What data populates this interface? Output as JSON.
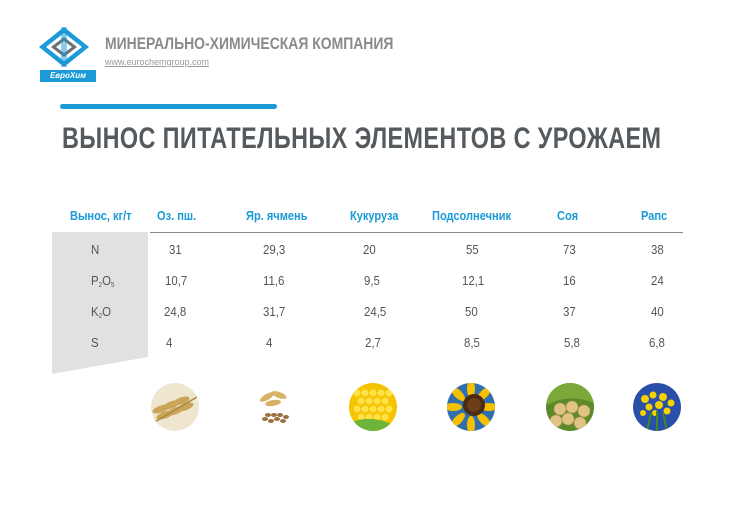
{
  "header": {
    "company": "МИНЕРАЛЬНО-ХИМИЧЕСКАЯ КОМПАНИЯ",
    "url": "www.eurochemgroup.com",
    "brand": "ЕвроХим"
  },
  "title": "ВЫНОС ПИТАТЕЛЬНЫХ ЭЛЕМЕНТОВ  С УРОЖАЕМ",
  "table": {
    "corner": "Вынос, кг/т",
    "columns": [
      "Оз. пш.",
      "Яр. ячмень",
      "Кукуруза",
      "Подсолнечник",
      "Соя",
      "Рапс"
    ],
    "rows": [
      {
        "main": "N",
        "sub1": "",
        "tail": "",
        "sub2": "",
        "values": [
          "31",
          "29,3",
          "20",
          "55",
          "73",
          "38"
        ]
      },
      {
        "main": "P",
        "sub1": "2",
        "tail": "O",
        "sub2": "5",
        "values": [
          "10,7",
          "11,6",
          "9,5",
          "12,1",
          "16",
          "24"
        ]
      },
      {
        "main": "K",
        "sub1": "2",
        "tail": "O",
        "sub2": "",
        "values": [
          "24,8",
          "31,7",
          "24,5",
          "50",
          "37",
          "40"
        ]
      },
      {
        "main": "S",
        "sub1": "",
        "tail": "",
        "sub2": "",
        "values": [
          "4",
          "4",
          "2,7",
          "8,5",
          "5,8",
          "6,8"
        ]
      }
    ]
  },
  "crops": [
    "wheat-image",
    "barley-image",
    "corn-image",
    "sunflower-image",
    "soy-image",
    "rapeseed-image"
  ],
  "colors": {
    "accent": "#1a9bd7",
    "text": "#555a5e",
    "panel": "#e1e1e3"
  }
}
